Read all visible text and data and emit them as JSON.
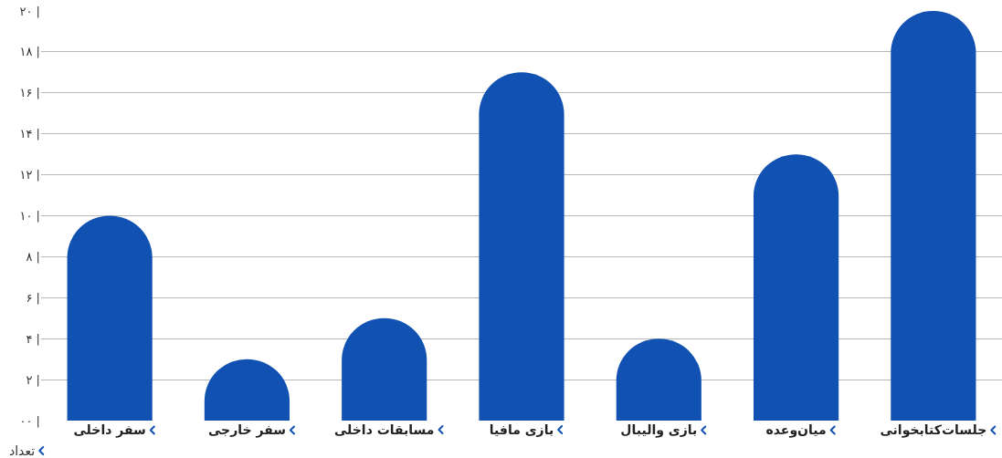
{
  "chart_data": {
    "type": "bar",
    "ylabel": "تعداد",
    "categories": [
      "سفر داخلی",
      "سفر خارجی",
      "مسابقات داخلی",
      "بازی مافیا",
      "بازی والیبال",
      "میان‌وعده",
      "جلسات‌کتابخوانی"
    ],
    "values": [
      10,
      3,
      5,
      17,
      4,
      13,
      20
    ],
    "color": "#1151b2",
    "ylim": [
      0,
      20
    ],
    "yticks": [
      {
        "value": 0,
        "label": "۰۰ |"
      },
      {
        "value": 2,
        "label": "۲ |"
      },
      {
        "value": 4,
        "label": "۴ |"
      },
      {
        "value": 6,
        "label": "۶ |"
      },
      {
        "value": 8,
        "label": "۸ |"
      },
      {
        "value": 10,
        "label": "۱۰ |"
      },
      {
        "value": 12,
        "label": "۱۲ |"
      },
      {
        "value": 14,
        "label": "۱۴ |"
      },
      {
        "value": 16,
        "label": "۱۶ |"
      },
      {
        "value": 18,
        "label": "۱۸ |"
      },
      {
        "value": 20,
        "label": "۲۰ |"
      }
    ],
    "grid": "y"
  }
}
